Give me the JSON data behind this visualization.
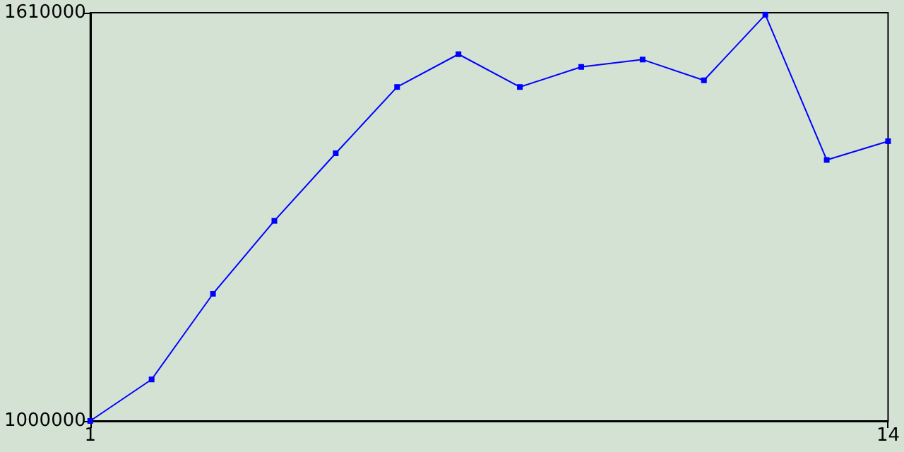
{
  "chart_data": {
    "type": "line",
    "x": [
      1,
      2,
      3,
      4,
      5,
      6,
      7,
      8,
      9,
      10,
      11,
      12,
      13,
      14
    ],
    "series": [
      {
        "color": "#0000ff",
        "values": [
          1000000,
          1062000,
          1190000,
          1299000,
          1400000,
          1499000,
          1548000,
          1499000,
          1529000,
          1540000,
          1509000,
          1607000,
          1390000,
          1418000
        ]
      }
    ],
    "xlim": [
      1,
      14
    ],
    "xticks": [
      1,
      14
    ],
    "ylim": [
      1000000,
      1610000
    ],
    "yticks": [
      1000000,
      1610000
    ],
    "grid": false,
    "marker": "square",
    "line_style": "solid"
  }
}
